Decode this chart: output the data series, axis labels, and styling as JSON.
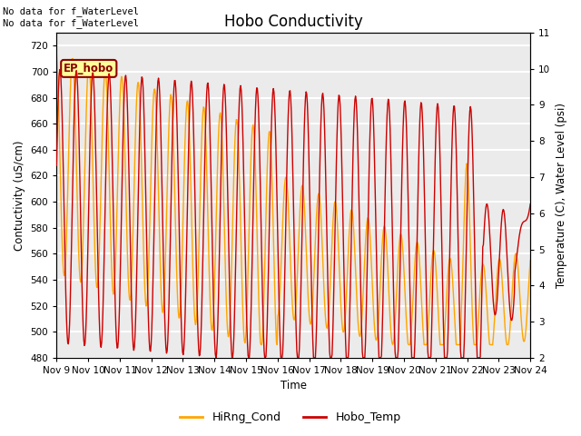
{
  "title": "Hobo Conductivity",
  "xlabel": "Time",
  "ylabel_left": "Contuctivity (uS/cm)",
  "ylabel_right": "Temperature (C), Water Level (psi)",
  "annotation_text": "No data for f_WaterLevel\nNo data for f_WaterLevel",
  "legend_label": "EP_hobo",
  "legend_line1": "HiRng_Cond",
  "legend_line2": "Hobo_Temp",
  "ylim_left": [
    480,
    730
  ],
  "ylim_right": [
    2.0,
    11.0
  ],
  "yticks_left": [
    480,
    500,
    520,
    540,
    560,
    580,
    600,
    620,
    640,
    660,
    680,
    700,
    720
  ],
  "yticks_right": [
    2.0,
    3.0,
    4.0,
    5.0,
    6.0,
    7.0,
    8.0,
    9.0,
    10.0,
    11.0
  ],
  "xtick_labels": [
    "Nov 9",
    "Nov 10",
    "Nov 11",
    "Nov 12",
    "Nov 13",
    "Nov 14",
    "Nov 15",
    "Nov 16",
    "Nov 17",
    "Nov 18",
    "Nov 19",
    "Nov 20",
    "Nov 21",
    "Nov 22",
    "Nov 23",
    "Nov 24"
  ],
  "color_cond": "#FFA500",
  "color_temp": "#CC0000",
  "plot_bg_color": "#EBEBEB",
  "grid_color": "#FFFFFF",
  "annotation_fontsize": 7.5,
  "title_fontsize": 12,
  "axis_fontsize": 8.5,
  "tick_fontsize": 7.5
}
